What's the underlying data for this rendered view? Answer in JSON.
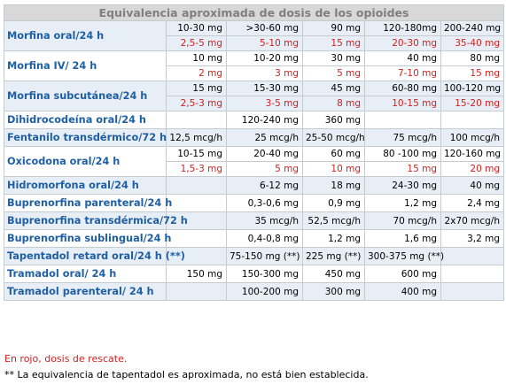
{
  "title": "Equivalencia aproximada de dosis de los opioides",
  "colors": {
    "drug_label": "#1f5fa4",
    "rescue_dose": "#d42020",
    "title_bg": "#d8d8d8",
    "title_text": "#7f7f7f",
    "stripe": "#e8eef6"
  },
  "rows": [
    {
      "drug": "Morfina oral/24 h",
      "doses": [
        "10-30 mg",
        ">30-60 mg",
        "90 mg",
        "120-180mg",
        "200-240  mg"
      ],
      "rescue": [
        "2,5-5 mg",
        "5-10 mg",
        "15 mg",
        "20-30 mg",
        "35-40 mg"
      ]
    },
    {
      "drug": "Morfina IV/ 24 h",
      "doses": [
        "10 mg",
        "10-20 mg",
        "30 mg",
        "40 mg",
        "80 mg"
      ],
      "rescue": [
        "2 mg",
        "3 mg",
        "5 mg",
        "7-10 mg",
        "15 mg"
      ]
    },
    {
      "drug": "Morfina subcutánea/24 h",
      "doses": [
        "15 mg",
        "15-30 mg",
        "45 mg",
        "60-80 mg",
        "100-120 mg"
      ],
      "rescue": [
        "2,5-3 mg",
        "3-5 mg",
        "8 mg",
        "10-15 mg",
        "15-20 mg"
      ]
    },
    {
      "drug": "Dihidrocodeína oral/24 h",
      "doses": [
        "",
        "120-240 mg",
        "360 mg",
        "",
        ""
      ]
    },
    {
      "drug": "Fentanilo transdérmico/72 h",
      "doses": [
        "12,5 mcg/h",
        "25 mcg/h",
        "25-50 mcg/h",
        "75 mcg/h",
        "100 mcg/h"
      ]
    },
    {
      "drug": "Oxicodona oral/24 h",
      "doses": [
        "10-15 mg",
        "20-40  mg",
        "60 mg",
        "80 -100 mg",
        "120-160 mg"
      ],
      "rescue": [
        "1,5-3 mg",
        "5 mg",
        "10 mg",
        "15 mg",
        "20 mg"
      ]
    },
    {
      "drug": "Hidromorfona oral/24 h",
      "doses": [
        "",
        "6-12 mg",
        "18 mg",
        "24-30 mg",
        "40 mg"
      ]
    },
    {
      "drug": "Buprenorfina parenteral/24 h",
      "doses": [
        "",
        "0,3-0,6 mg",
        "0,9 mg",
        "1,2 mg",
        "2,4 mg"
      ]
    },
    {
      "drug": "Buprenorfina transdérmica/72 h",
      "doses": [
        "",
        "35 mcg/h",
        "52,5 mcg/h",
        "70 mcg/h",
        "2x70 mcg/h"
      ]
    },
    {
      "drug": "Buprenorfina sublingual/24 h",
      "doses": [
        "",
        "0,4-0,8 mg",
        "1,2 mg",
        "1,6 mg",
        "3,2 mg"
      ]
    },
    {
      "drug": "Tapentadol retard oral/24 h (**)",
      "doses": [
        "",
        "75-150 mg (**)",
        "225 mg (**)",
        "300-375 mg (**)",
        ""
      ]
    },
    {
      "drug": "Tramadol oral/ 24 h",
      "doses": [
        "150 mg",
        "150-300 mg",
        "450 mg",
        "600 mg",
        ""
      ]
    },
    {
      "drug": "Tramadol parenteral/ 24 h",
      "doses": [
        "",
        "100-200 mg",
        "300 mg",
        "400 mg",
        ""
      ]
    }
  ],
  "notes": {
    "rescue": "En rojo, dosis de rescate.",
    "tapentadol": "** La equivalencia de tapentadol es aproximada, no está bien establecida."
  }
}
